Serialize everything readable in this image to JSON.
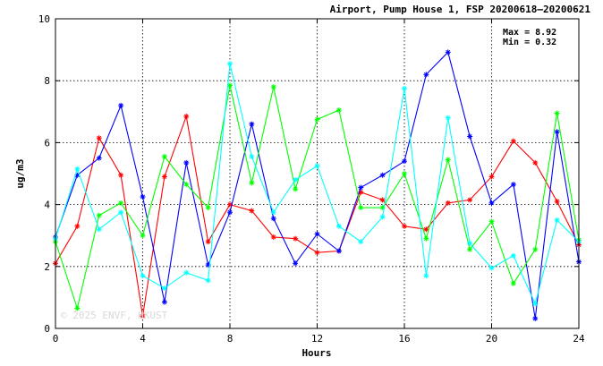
{
  "chart_data": {
    "type": "line",
    "title": "Airport, Pump House 1, FSP 20200618–20200621",
    "xlabel": "Hours",
    "ylabel": "ug/m3",
    "xlim": [
      0,
      24
    ],
    "ylim": [
      0,
      10
    ],
    "x_ticks": [
      0,
      4,
      8,
      12,
      16,
      20,
      24
    ],
    "y_ticks": [
      0,
      2,
      4,
      6,
      8,
      10
    ],
    "grid": true,
    "annotations": {
      "max": "Max = 8.92",
      "min": "Min = 0.32"
    },
    "watermark": "© 2025 ENVF, HKUST",
    "x": [
      0,
      1,
      2,
      3,
      4,
      5,
      6,
      7,
      8,
      9,
      10,
      11,
      12,
      13,
      14,
      15,
      16,
      17,
      18,
      19,
      20,
      21,
      22,
      23,
      24
    ],
    "series": [
      {
        "color": "#ff0000",
        "values": [
          2.1,
          3.3,
          6.15,
          4.95,
          0.4,
          4.9,
          6.85,
          2.8,
          4.0,
          3.8,
          2.95,
          2.9,
          2.45,
          2.5,
          4.4,
          4.15,
          3.3,
          3.2,
          4.05,
          4.15,
          4.9,
          6.05,
          5.35,
          4.1,
          2.7
        ]
      },
      {
        "color": "#0000ff",
        "values": [
          2.95,
          4.95,
          5.5,
          7.2,
          4.25,
          0.85,
          5.35,
          2.05,
          3.75,
          6.6,
          3.55,
          2.1,
          3.05,
          2.5,
          4.55,
          4.95,
          5.4,
          8.2,
          8.92,
          6.2,
          4.05,
          4.65,
          0.32,
          6.35,
          2.15
        ]
      },
      {
        "color": "#00ff00",
        "values": [
          2.8,
          0.65,
          3.65,
          4.05,
          3.0,
          5.55,
          4.65,
          3.9,
          7.85,
          4.7,
          7.8,
          4.5,
          6.75,
          7.05,
          3.9,
          3.9,
          5.0,
          2.9,
          5.45,
          2.55,
          3.45,
          1.45,
          2.55,
          6.95,
          2.85
        ]
      },
      {
        "color": "#00ffff",
        "values": [
          2.9,
          5.15,
          3.2,
          3.75,
          1.7,
          1.3,
          1.8,
          1.55,
          8.55,
          5.55,
          3.75,
          4.8,
          5.25,
          3.3,
          2.8,
          3.6,
          7.75,
          1.7,
          6.8,
          2.75,
          1.95,
          2.35,
          0.8,
          3.5,
          2.8
        ]
      }
    ]
  }
}
